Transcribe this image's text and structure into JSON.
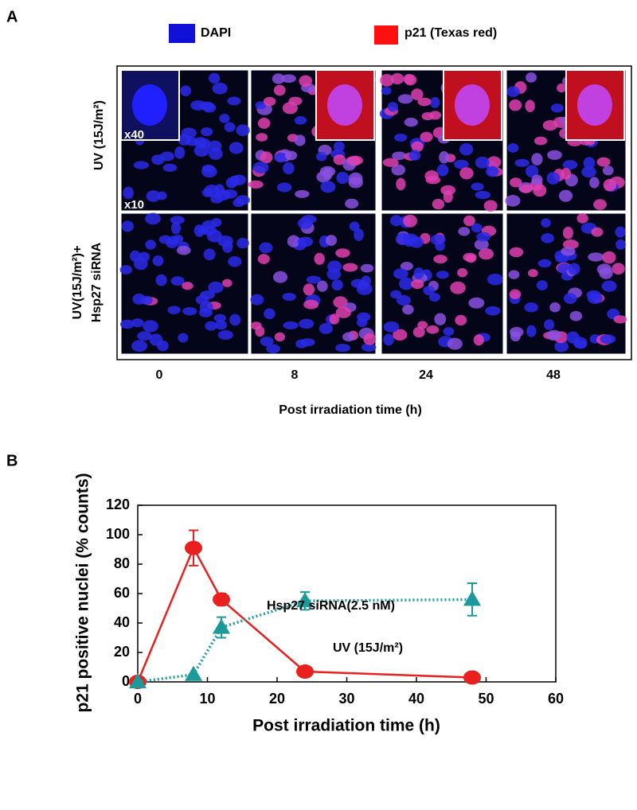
{
  "panel_a": {
    "letter": "A",
    "legend": [
      "DAPI",
      "p21 (Texas red)"
    ],
    "row_labels": [
      "UV (15J/m²)",
      "UV(15J/m²)+",
      "Hsp27 siRNA"
    ],
    "inset_labels": [
      "x40",
      "x10"
    ],
    "column_labels": [
      "0",
      "8",
      "24",
      "48"
    ],
    "axis_title": "Post irradiation time (h)"
  },
  "chart_data": {
    "type": "line",
    "letter": "B",
    "x_label": "Post irradiation time (h)",
    "y_label": "p21 positive nuclei (% counts)",
    "xlim": [
      0,
      60
    ],
    "xticks": [
      0,
      10,
      20,
      30,
      40,
      50,
      60
    ],
    "ylim": [
      0,
      120
    ],
    "yticks": [
      0,
      20,
      40,
      60,
      80,
      100,
      120
    ],
    "series": [
      {
        "name": "UV (15J/m²)",
        "color": "#e8201e",
        "marker": "circle",
        "dash": "solid",
        "x": [
          0,
          8,
          12,
          24,
          48
        ],
        "values": [
          0,
          91,
          56,
          7,
          3
        ],
        "errors": [
          0,
          12,
          4,
          0,
          0
        ]
      },
      {
        "name": "Hsp27 siRNA(2.5 nM)",
        "color": "#1a9a9a",
        "marker": "triangle",
        "dash": "dotted",
        "x": [
          0,
          8,
          12,
          24,
          48
        ],
        "values": [
          0,
          5,
          37,
          55,
          56
        ],
        "errors": [
          0,
          0,
          7,
          6,
          11
        ]
      }
    ]
  }
}
